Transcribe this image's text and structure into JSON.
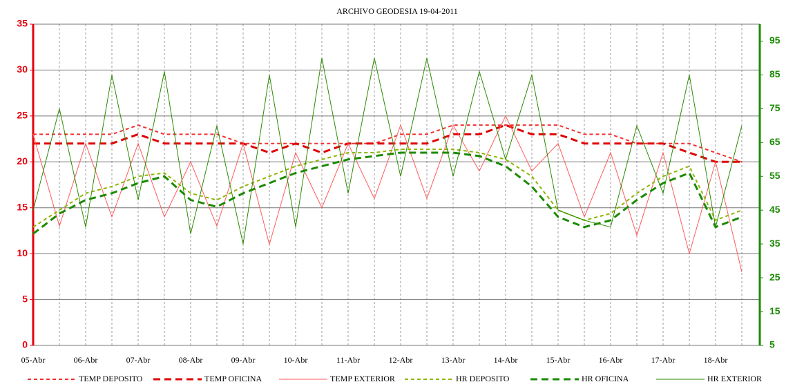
{
  "chart_data": {
    "type": "line",
    "title": "ARCHIVO GEODESIA 19-04-2011",
    "categories": [
      "05-Abr",
      null,
      "06-Abr",
      null,
      "07-Abr",
      null,
      "08-Abr",
      null,
      "09-Abr",
      null,
      "10-Abr",
      null,
      "11-Abr",
      null,
      "12-Abr",
      null,
      "13-Abr",
      null,
      "14-Abr",
      null,
      "15-Abr",
      null,
      "16-Abr",
      null,
      "17-Abr",
      null,
      "18-Abr",
      null
    ],
    "ylim": [
      0,
      35
    ],
    "yticks": [
      0,
      5,
      10,
      15,
      20,
      25,
      30,
      35
    ],
    "y2lim": [
      5,
      100
    ],
    "y2ticks": [
      5,
      15,
      25,
      35,
      45,
      55,
      65,
      75,
      85,
      95
    ],
    "grid": true,
    "legend": "bottom",
    "y_color": "#e8000b",
    "y2_color": "#1a8a00",
    "series": [
      {
        "name": "TEMP DEPOSITO",
        "color": "#f03030",
        "style": "dashed",
        "width": 2,
        "values": [
          23,
          23,
          23,
          23,
          24,
          23,
          23,
          23,
          22,
          22,
          22,
          22,
          22,
          22,
          23,
          23,
          24,
          24,
          24,
          24,
          24,
          23,
          23,
          22,
          22,
          22,
          21,
          20
        ]
      },
      {
        "name": "TEMP OFICINA",
        "color": "#e00000",
        "style": "dashed",
        "width": 3,
        "values": [
          22,
          22,
          22,
          22,
          23,
          22,
          22,
          22,
          22,
          21,
          22,
          21,
          22,
          22,
          22,
          22,
          23,
          23,
          24,
          23,
          23,
          22,
          22,
          22,
          22,
          21,
          20,
          20
        ]
      },
      {
        "name": "TEMP EXTERIOR",
        "color": "#ff5a5a",
        "style": "solid",
        "width": 1,
        "values": [
          23,
          13,
          22,
          14,
          22,
          14,
          20,
          13,
          22,
          11,
          21,
          15,
          22,
          16,
          24,
          16,
          24,
          19,
          25,
          19,
          22,
          14,
          21,
          12,
          21,
          10,
          20,
          8
        ]
      },
      {
        "name": "HR DEPOSITO",
        "color": "#8db600",
        "style": "dashed",
        "width": 2,
        "axis": "y2",
        "values": [
          40,
          45,
          50,
          52,
          55,
          56,
          50,
          48,
          52,
          55,
          58,
          60,
          62,
          62,
          63,
          63,
          63,
          62,
          60,
          55,
          45,
          42,
          44,
          50,
          55,
          58,
          42,
          45
        ]
      },
      {
        "name": "HR OFICINA",
        "color": "#1a8a00",
        "style": "dashed",
        "width": 3,
        "axis": "y2",
        "values": [
          38,
          44,
          48,
          50,
          53,
          55,
          48,
          46,
          50,
          53,
          56,
          58,
          60,
          61,
          62,
          62,
          62,
          61,
          58,
          52,
          43,
          40,
          42,
          48,
          53,
          56,
          40,
          43
        ]
      },
      {
        "name": "HR EXTERIOR",
        "color": "#2b8a00",
        "style": "solid",
        "width": 1,
        "axis": "y2",
        "values": [
          45,
          75,
          40,
          85,
          48,
          86,
          38,
          70,
          35,
          85,
          40,
          90,
          50,
          90,
          55,
          90,
          55,
          86,
          60,
          85,
          45,
          42,
          40,
          70,
          50,
          85,
          40,
          70
        ]
      }
    ]
  }
}
